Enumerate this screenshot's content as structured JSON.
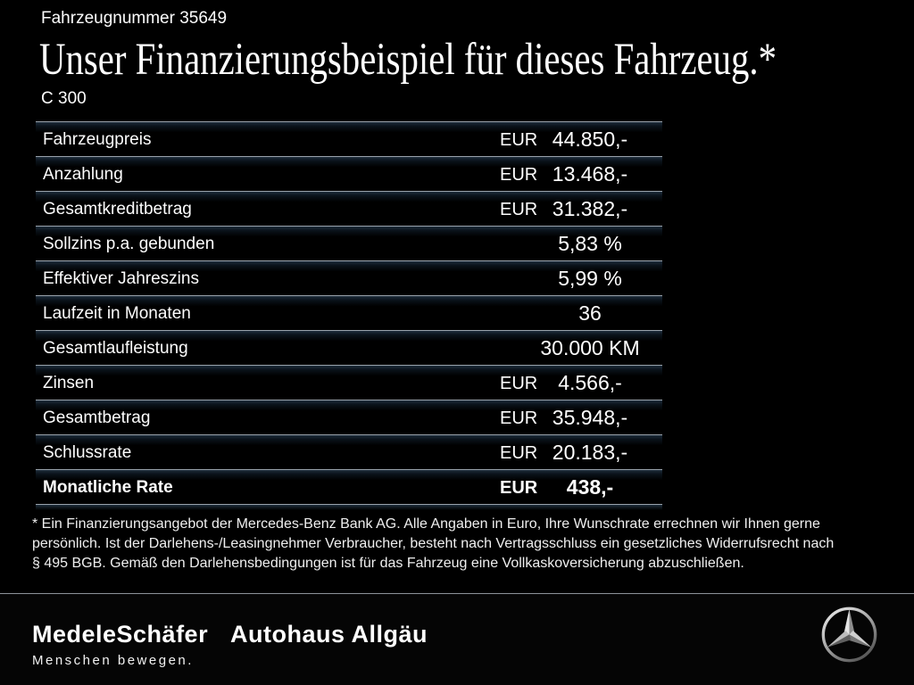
{
  "header": {
    "vehicle_number": "Fahrzeugnummer 35649",
    "title": "Unser Finanzierungsbeispiel für dieses Fahrzeug.*",
    "model": "C 300"
  },
  "finance_table": {
    "rows": [
      {
        "label": "Fahrzeugpreis",
        "currency": "EUR",
        "value": "44.850,-",
        "emphasis": false
      },
      {
        "label": "Anzahlung",
        "currency": "EUR",
        "value": "13.468,-",
        "emphasis": false
      },
      {
        "label": "Gesamtkreditbetrag",
        "currency": "EUR",
        "value": "31.382,-",
        "emphasis": false
      },
      {
        "label": "Sollzins p.a. gebunden",
        "currency": "",
        "value": "5,83 %",
        "emphasis": false
      },
      {
        "label": "Effektiver Jahreszins",
        "currency": "",
        "value": "5,99 %",
        "emphasis": false
      },
      {
        "label": "Laufzeit in Monaten",
        "currency": "",
        "value": "36",
        "emphasis": false
      },
      {
        "label": "Gesamtlaufleistung",
        "currency": "",
        "value": "30.000 KM",
        "emphasis": false
      },
      {
        "label": "Zinsen",
        "currency": "EUR",
        "value": "4.566,-",
        "emphasis": false
      },
      {
        "label": "Gesamtbetrag",
        "currency": "EUR",
        "value": "35.948,-",
        "emphasis": false
      },
      {
        "label": "Schlussrate",
        "currency": "EUR",
        "value": "20.183,-",
        "emphasis": false
      },
      {
        "label": "Monatliche Rate",
        "currency": "EUR",
        "value": "438,-",
        "emphasis": true
      }
    ]
  },
  "footnote": {
    "lines": [
      "* Ein Finanzierungsangebot der Mercedes-Benz Bank AG. Alle Angaben in Euro, Ihre Wunschrate errechnen wir Ihnen gerne",
      "persönlich. Ist der Darlehens-/Leasingnehmer Verbraucher, besteht nach Vertragsschluss ein gesetzliches Widerrufsrecht nach",
      "§ 495 BGB. Gemäß den Darlehensbedingungen ist für das Fahrzeug eine Vollkaskoversicherung abzuschließen."
    ]
  },
  "footer": {
    "dealer_name": "MedeleSchäfer",
    "dealer_tagline": "Menschen bewegen.",
    "dealer_name_2": "Autohaus Allgäu",
    "brand_icon": "mercedes-benz-star"
  },
  "colors": {
    "background": "#000000",
    "separator_line": "#99a2ab",
    "separator_glow": "#1e2d3b",
    "footer_divider": "#8d9399",
    "text_primary": "#ffffff"
  }
}
